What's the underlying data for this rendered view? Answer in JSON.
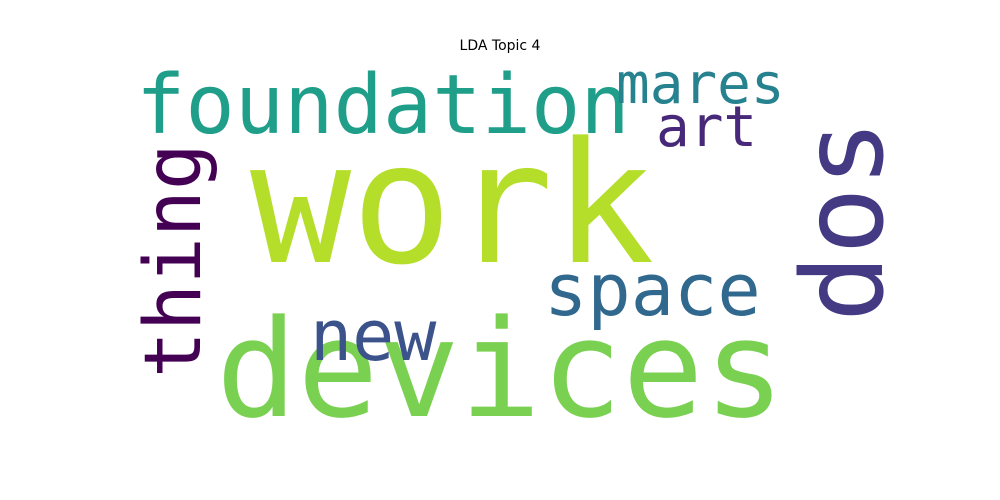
{
  "chart_data": {
    "type": "wordcloud",
    "title": "LDA Topic 4",
    "colormap": "viridis",
    "background": "#ffffff",
    "words": [
      {
        "text": "work",
        "weight": 1.0,
        "rotated": false,
        "color": "#b5de2b"
      },
      {
        "text": "devices",
        "weight": 0.98,
        "rotated": false,
        "color": "#7ad151"
      },
      {
        "text": "foundation",
        "weight": 0.6,
        "rotated": false,
        "color": "#1f9e89"
      },
      {
        "text": "dos",
        "weight": 0.72,
        "rotated": true,
        "color": "#443983"
      },
      {
        "text": "thing",
        "weight": 0.48,
        "rotated": true,
        "color": "#440154"
      },
      {
        "text": "space",
        "weight": 0.52,
        "rotated": false,
        "color": "#31688e"
      },
      {
        "text": "new",
        "weight": 0.44,
        "rotated": false,
        "color": "#3b528b"
      },
      {
        "text": "mares",
        "weight": 0.34,
        "rotated": false,
        "color": "#26828e"
      },
      {
        "text": "art",
        "weight": 0.34,
        "rotated": false,
        "color": "#482878"
      }
    ]
  }
}
